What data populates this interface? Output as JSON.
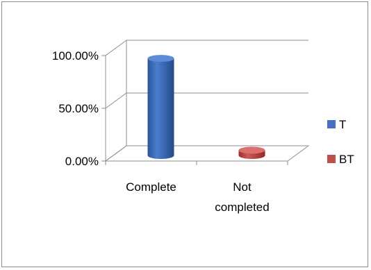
{
  "chart_data": {
    "type": "bar",
    "title": "",
    "xlabel": "",
    "ylabel": "",
    "categories": [
      [
        "Complete"
      ],
      [
        "Not",
        "completed"
      ]
    ],
    "series": [
      {
        "name": "T",
        "color": "#4472c4",
        "values": [
          0.92,
          null
        ]
      },
      {
        "name": "BT",
        "color": "#c0504d",
        "values": [
          null,
          0.05
        ]
      }
    ],
    "y_ticks": [
      {
        "value": 0,
        "label": "0.00%"
      },
      {
        "value": 0.5,
        "label": "50.00%"
      },
      {
        "value": 1,
        "label": "100.00%"
      }
    ],
    "ylim": [
      0,
      1
    ],
    "grid": true,
    "legend": "right",
    "style": "3d-cylinder"
  }
}
